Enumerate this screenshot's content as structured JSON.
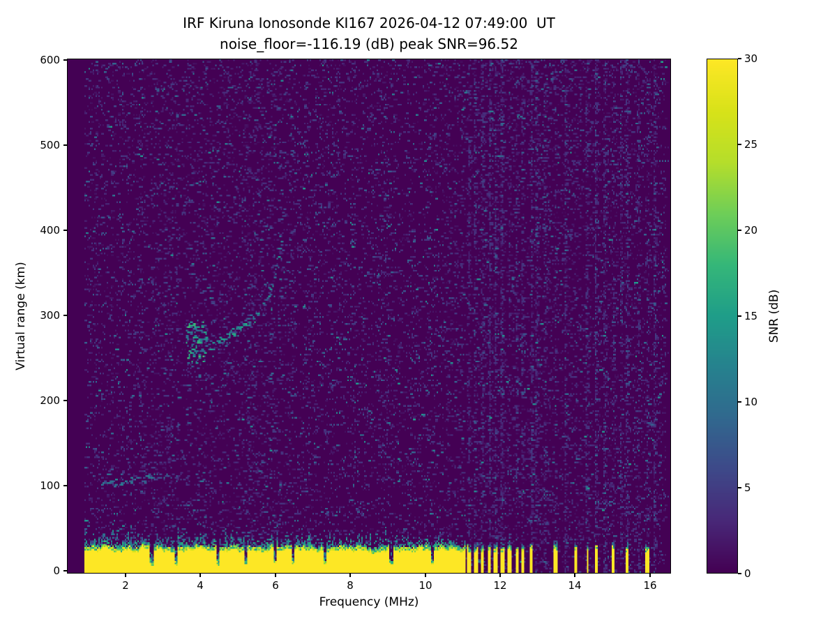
{
  "colors": {
    "background": "#ffffff",
    "text": "#000000",
    "plot_base": "#440154",
    "peak": "#fde725"
  },
  "chart_data": {
    "type": "heatmap",
    "title": "IRF Kiruna Ionosonde KI167 2026-04-12 07:49:00  UT",
    "subtitle": "noise_floor=-116.19 (dB) peak SNR=96.52",
    "xlabel": "Frequency (MHz)",
    "ylabel": "Virtual range (km)",
    "xlim": [
      0.44,
      16.56
    ],
    "ylim": [
      -3,
      602
    ],
    "xticks": [
      2,
      4,
      6,
      8,
      10,
      12,
      14,
      16
    ],
    "yticks": [
      0,
      100,
      200,
      300,
      400,
      500,
      600
    ],
    "grid": false,
    "colorbar": {
      "label": "SNR (dB)",
      "min": 0,
      "max": 30,
      "ticks": [
        0,
        5,
        10,
        15,
        20,
        25,
        30
      ],
      "colormap": "viridis"
    },
    "colormap_anchors": [
      "#440154",
      "#482878",
      "#3e4989",
      "#31688e",
      "#26828e",
      "#1f9e89",
      "#35b779",
      "#6ece58",
      "#b5de2b",
      "#d8e219",
      "#fde725"
    ],
    "noise": {
      "freq_min": 0.9,
      "freq_max": 16.45,
      "speckle_density": 0.09
    },
    "ground_band": {
      "freq_start": 0.9,
      "freq_end": 11.08,
      "top_km_mean": 27,
      "fringe_km": 14,
      "notches_mhz": [
        2.7,
        3.35,
        4.46,
        5.2,
        5.98,
        6.47,
        7.33,
        9.1,
        10.2
      ],
      "bars_mhz": [
        [
          11.18,
          0.1
        ],
        [
          11.36,
          0.09
        ],
        [
          11.53,
          0.08
        ],
        [
          11.71,
          0.09
        ],
        [
          11.89,
          0.08
        ],
        [
          12.07,
          0.09
        ],
        [
          12.26,
          0.08
        ],
        [
          12.46,
          0.09
        ],
        [
          12.63,
          0.07
        ],
        [
          12.83,
          0.08
        ],
        [
          13.49,
          0.1
        ],
        [
          14.03,
          0.09
        ],
        [
          14.34,
          0.05
        ],
        [
          14.58,
          0.08
        ],
        [
          15.03,
          0.09
        ],
        [
          15.4,
          0.08
        ],
        [
          15.96,
          0.11
        ]
      ]
    },
    "rfi_columns_mhz": [
      11.18,
      11.36,
      11.53,
      11.71,
      11.89,
      12.07,
      12.26,
      12.46,
      12.63,
      12.83,
      13.0,
      13.2,
      13.49,
      13.75,
      14.03,
      14.34,
      14.58,
      14.8,
      15.03,
      15.25,
      15.4,
      15.7,
      15.96,
      16.15
    ],
    "echo_traces": [
      {
        "name": "E-layer-trace",
        "kind": "polyline",
        "points": [
          [
            1.35,
            101
          ],
          [
            2.2,
            106
          ],
          [
            3.1,
            113
          ]
        ],
        "snr": 8,
        "spread_km": 4,
        "density": 0.5
      },
      {
        "name": "F-region-blob",
        "kind": "cluster",
        "freq": [
          3.62,
          4.18
        ],
        "km": [
          243,
          292
        ],
        "snr": 14,
        "count": 90
      },
      {
        "name": "F-region-rise",
        "kind": "polyline",
        "points": [
          [
            4.2,
            262
          ],
          [
            5.0,
            283
          ],
          [
            5.6,
            302
          ]
        ],
        "snr": 11,
        "spread_km": 5,
        "density": 0.6
      },
      {
        "name": "F-region-steep",
        "kind": "polyline",
        "points": [
          [
            5.6,
            302
          ],
          [
            5.95,
            345
          ],
          [
            6.15,
            395
          ]
        ],
        "snr": 10,
        "spread_km": 8,
        "density": 0.5
      },
      {
        "name": "F-spread-scatter",
        "kind": "cluster",
        "freq": [
          6.1,
          6.5
        ],
        "km": [
          300,
          560
        ],
        "snr": 5,
        "count": 45
      }
    ]
  }
}
